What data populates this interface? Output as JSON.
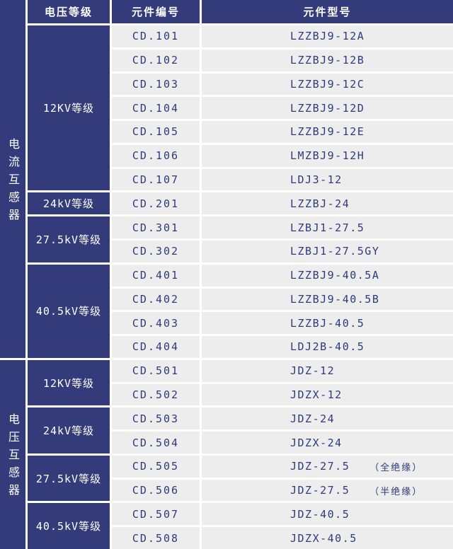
{
  "table": {
    "colors": {
      "navy": "#333b7a",
      "cell_background": "#ededee",
      "text_navy": "#2e3a7a",
      "separator": "#ffffff"
    },
    "headers": {
      "voltage": "电压等级",
      "code": "元件编号",
      "model": "元件型号"
    },
    "sections": [
      {
        "category": "电流互感器",
        "groups": [
          {
            "voltage": "12KV等级",
            "rows": [
              {
                "code": "CD.101",
                "model": "LZZBJ9-12A"
              },
              {
                "code": "CD.102",
                "model": "LZZBJ9-12B"
              },
              {
                "code": "CD.103",
                "model": "LZZBJ9-12C"
              },
              {
                "code": "CD.104",
                "model": "LZZBJ9-12D"
              },
              {
                "code": "CD.105",
                "model": "LZZBJ9-12E"
              },
              {
                "code": "CD.106",
                "model": "LMZBJ9-12H"
              },
              {
                "code": "CD.107",
                "model": "LDJ3-12"
              }
            ]
          },
          {
            "voltage": "24kV等级",
            "rows": [
              {
                "code": "CD.201",
                "model": "LZZBJ-24"
              }
            ]
          },
          {
            "voltage": "27.5kV等级",
            "rows": [
              {
                "code": "CD.301",
                "model": "LZBJ1-27.5"
              },
              {
                "code": "CD.302",
                "model": "LZBJ1-27.5GY"
              }
            ]
          },
          {
            "voltage": "40.5kV等级",
            "rows": [
              {
                "code": "CD.401",
                "model": "LZZBJ9-40.5A"
              },
              {
                "code": "CD.402",
                "model": "LZZBJ9-40.5B"
              },
              {
                "code": "CD.403",
                "model": "LZZBJ-40.5"
              },
              {
                "code": "CD.404",
                "model": "LDJ2B-40.5"
              }
            ]
          }
        ]
      },
      {
        "category": "电压互感器",
        "groups": [
          {
            "voltage": "12KV等级",
            "rows": [
              {
                "code": "CD.501",
                "model": "JDZ-12"
              },
              {
                "code": "CD.502",
                "model": "JDZX-12"
              }
            ]
          },
          {
            "voltage": "24kV等级",
            "rows": [
              {
                "code": "CD.503",
                "model": "JDZ-24"
              },
              {
                "code": "CD.504",
                "model": "JDZX-24"
              }
            ]
          },
          {
            "voltage": "27.5kV等级",
            "rows": [
              {
                "code": "CD.505",
                "model": "JDZ-27.5",
                "note": "（全绝缘）"
              },
              {
                "code": "CD.506",
                "model": "JDZ-27.5",
                "note": "（半绝缘）"
              }
            ]
          },
          {
            "voltage": "40.5kV等级",
            "rows": [
              {
                "code": "CD.507",
                "model": "JDZ-40.5"
              },
              {
                "code": "CD.508",
                "model": "JDZX-40.5"
              }
            ]
          }
        ]
      }
    ]
  }
}
